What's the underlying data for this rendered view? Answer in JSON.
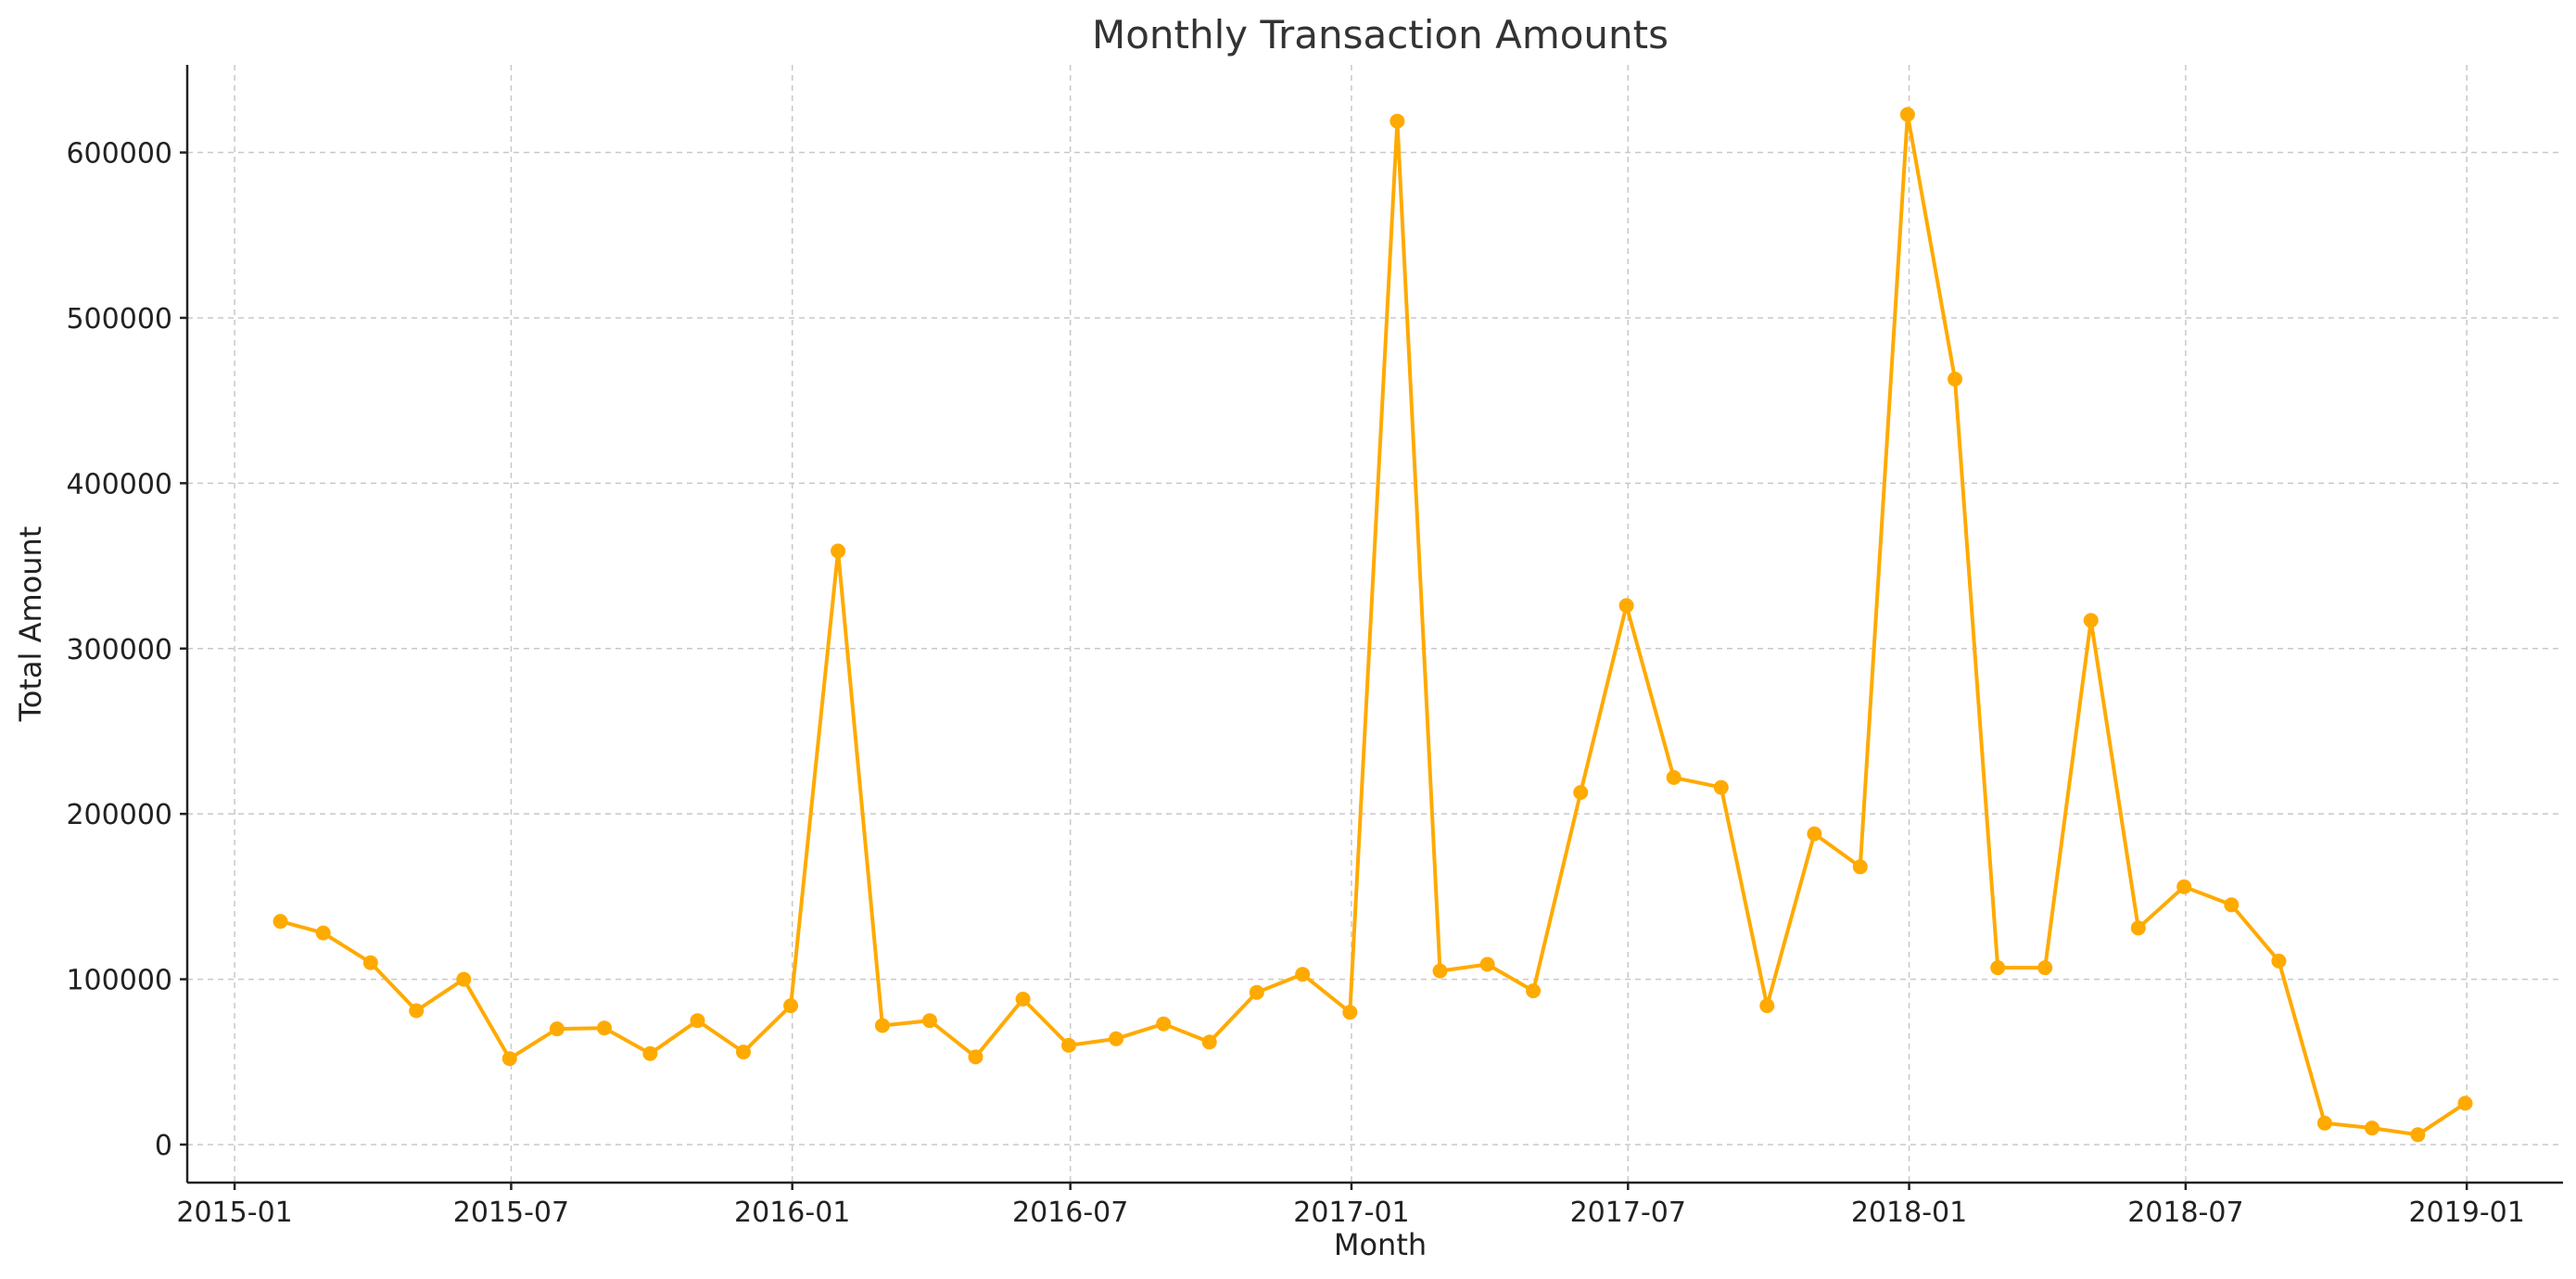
{
  "chart_data": {
    "type": "line",
    "title": "Monthly Transaction Amounts",
    "xlabel": "Month",
    "ylabel": "Total Amount",
    "x_ticks": [
      "2015-01",
      "2015-07",
      "2016-01",
      "2016-07",
      "2017-01",
      "2017-07",
      "2018-01",
      "2018-07",
      "2019-01"
    ],
    "y_ticks": [
      0,
      100000,
      200000,
      300000,
      400000,
      500000,
      600000
    ],
    "xlim": [
      "2014-12-01",
      "2019-03-05"
    ],
    "ylim": [
      -23000,
      653000
    ],
    "grid": true,
    "color": "#FFAA00",
    "series": [
      {
        "x": [
          "2015-01-31",
          "2015-02-28",
          "2015-03-31",
          "2015-04-30",
          "2015-05-31",
          "2015-06-30",
          "2015-07-31",
          "2015-08-31",
          "2015-09-30",
          "2015-10-31",
          "2015-11-30",
          "2015-12-31",
          "2016-01-31",
          "2016-02-29",
          "2016-03-31",
          "2016-04-30",
          "2016-05-31",
          "2016-06-30",
          "2016-07-31",
          "2016-08-31",
          "2016-09-30",
          "2016-10-31",
          "2016-11-30",
          "2016-12-31",
          "2017-01-31",
          "2017-02-28",
          "2017-03-31",
          "2017-04-30",
          "2017-05-31",
          "2017-06-30",
          "2017-07-31",
          "2017-08-31",
          "2017-09-30",
          "2017-10-31",
          "2017-11-30",
          "2017-12-31",
          "2018-01-31",
          "2018-02-28",
          "2018-03-31",
          "2018-04-30",
          "2018-05-31",
          "2018-06-30",
          "2018-07-31",
          "2018-08-31",
          "2018-09-30",
          "2018-10-31",
          "2018-11-30",
          "2018-12-31"
        ],
        "values": [
          135000,
          128000,
          110000,
          81000,
          100000,
          52000,
          70000,
          70500,
          55000,
          75000,
          56000,
          84000,
          359000,
          72000,
          75000,
          53000,
          88000,
          60000,
          64000,
          73000,
          62000,
          92000,
          103000,
          80000,
          619000,
          105000,
          109000,
          93000,
          213000,
          326000,
          222000,
          216000,
          84000,
          188000,
          168000,
          623000,
          463000,
          107000,
          107000,
          317000,
          131000,
          156000,
          145000,
          111000,
          13000,
          10000,
          6000,
          25000
        ]
      }
    ]
  }
}
